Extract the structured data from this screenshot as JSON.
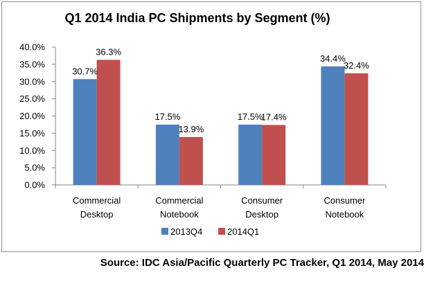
{
  "chart_data": {
    "type": "bar",
    "title": "Q1 2014 India PC Shipments by Segment (%)",
    "categories": [
      [
        "Commercial",
        "Desktop"
      ],
      [
        "Commercial",
        "Notebook"
      ],
      [
        "Consumer",
        "Desktop"
      ],
      [
        "Consumer",
        "Notebook"
      ]
    ],
    "series": [
      {
        "name": "2013Q4",
        "color": "#4f81bd",
        "values": [
          30.7,
          17.5,
          17.5,
          34.4
        ],
        "labels": [
          "30.7%",
          "17.5%",
          "17.5%",
          "34.4%"
        ]
      },
      {
        "name": "2014Q1",
        "color": "#c0504d",
        "values": [
          36.3,
          13.9,
          17.4,
          32.4
        ],
        "labels": [
          "36.3%",
          "13.9%",
          "17.4%",
          "32.4%"
        ]
      }
    ],
    "ylim": [
      0,
      40
    ],
    "yticks": [
      0,
      5,
      10,
      15,
      20,
      25,
      30,
      35,
      40
    ],
    "ytick_labels": [
      "0.0%",
      "5.0%",
      "10.0%",
      "15.0%",
      "20.0%",
      "25.0%",
      "30.0%",
      "35.0%",
      "40.0%"
    ],
    "grid": false,
    "legend": "bottom"
  },
  "source": "Source: IDC Asia/Pacific Quarterly PC Tracker, Q1 2014, May 2014"
}
